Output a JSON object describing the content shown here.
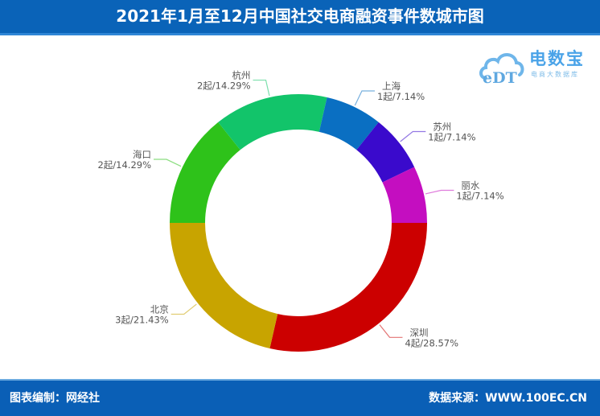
{
  "header": {
    "title": "2021年1月至12月中国社交电商融资事件数城市图"
  },
  "logo": {
    "icon": "cloud-edt-icon",
    "brand": "电数宝",
    "subtitle": "电商大数据库",
    "mark": "eDT"
  },
  "footer": {
    "left": "图表编制：网经社",
    "right": "数据来源：WWW.100EC.CN"
  },
  "chart_data": {
    "type": "pie",
    "variant": "donut",
    "title": "2021年1月至12月中国社交电商融资事件数城市图",
    "unit": "起",
    "categories": [
      "深圳",
      "北京",
      "海口",
      "杭州",
      "上海",
      "苏州",
      "丽水"
    ],
    "values": [
      4,
      3,
      2,
      2,
      1,
      1,
      1
    ],
    "percentages": [
      28.57,
      21.43,
      14.29,
      14.29,
      7.14,
      7.14,
      7.14
    ],
    "colors": [
      "#cc0000",
      "#c8a400",
      "#2ec21a",
      "#12c46a",
      "#0a6fc2",
      "#3a0acc",
      "#c40ec0"
    ],
    "labels": [
      "4起/28.57%",
      "3起/21.43%",
      "2起/14.29%",
      "2起/14.29%",
      "1起/7.14%",
      "1起/7.14%",
      "1起/7.14%"
    ],
    "start_angle_deg": 0,
    "direction": "clockwise",
    "legend": "none"
  }
}
